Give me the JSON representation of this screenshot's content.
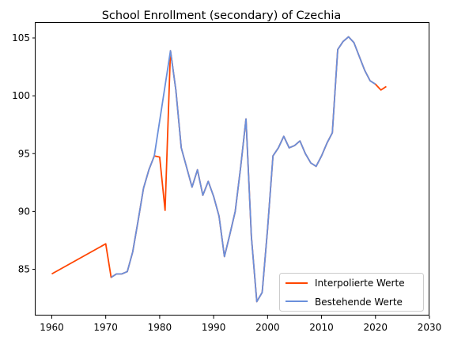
{
  "chart_data": {
    "type": "line",
    "title": "School Enrollment (secondary) of Czechia",
    "xlabel": "",
    "ylabel": "",
    "xlim": [
      1957,
      2030
    ],
    "ylim": [
      81,
      106.3
    ],
    "x_ticks": [
      1960,
      1970,
      1980,
      1990,
      2000,
      2010,
      2020,
      2030
    ],
    "y_ticks": [
      85,
      90,
      95,
      100,
      105
    ],
    "grid": false,
    "legend_position": "lower-right",
    "series": [
      {
        "name": "Interpolierte Werte",
        "color": "#ff4500",
        "x": [
          1960,
          1970,
          1971,
          1972,
          1973,
          1974,
          1975,
          1976,
          1977,
          1978,
          1979,
          1980,
          1981,
          1982,
          1983,
          1984,
          1985,
          1986,
          1987,
          1988,
          1989,
          1990,
          1991,
          1992,
          1993,
          1994,
          1995,
          1996,
          1997,
          1998,
          1999,
          2000,
          2001,
          2002,
          2003,
          2004,
          2005,
          2006,
          2007,
          2008,
          2009,
          2010,
          2011,
          2012,
          2013,
          2014,
          2015,
          2016,
          2017,
          2018,
          2019,
          2020,
          2021,
          2022
        ],
        "y": [
          84.6,
          87.2,
          84.3,
          84.6,
          84.6,
          84.8,
          86.5,
          89.2,
          92.0,
          93.6,
          94.8,
          94.7,
          90.1,
          103.9,
          100.5,
          95.5,
          93.8,
          92.1,
          93.6,
          91.4,
          92.6,
          91.3,
          89.6,
          86.1,
          88.0,
          90.0,
          93.8,
          98.0,
          87.8,
          82.2,
          83.0,
          88.5,
          94.8,
          95.5,
          96.5,
          95.5,
          95.7,
          96.1,
          95.0,
          94.2,
          93.9,
          94.8,
          95.9,
          96.8,
          104.0,
          104.7,
          105.1,
          104.6,
          103.4,
          102.2,
          101.3,
          101.0,
          100.5,
          100.8
        ]
      },
      {
        "name": "Bestehende Werte",
        "color": "#6a8fdb",
        "x": [
          1971,
          1972,
          1973,
          1974,
          1975,
          1976,
          1977,
          1978,
          1979,
          1982,
          1983,
          1984,
          1985,
          1986,
          1987,
          1988,
          1989,
          1990,
          1991,
          1992,
          1993,
          1994,
          1995,
          1996,
          1997,
          1998,
          1999,
          2000,
          2001,
          2002,
          2003,
          2004,
          2005,
          2006,
          2007,
          2008,
          2009,
          2010,
          2011,
          2012,
          2013,
          2014,
          2015,
          2016,
          2017,
          2018,
          2019,
          2020
        ],
        "y": [
          84.3,
          84.6,
          84.6,
          84.8,
          86.5,
          89.2,
          92.0,
          93.6,
          94.8,
          103.9,
          100.5,
          95.5,
          93.8,
          92.1,
          93.6,
          91.4,
          92.6,
          91.3,
          89.6,
          86.1,
          88.0,
          90.0,
          93.8,
          98.0,
          87.8,
          82.2,
          83.0,
          88.5,
          94.8,
          95.5,
          96.5,
          95.5,
          95.7,
          96.1,
          95.0,
          94.2,
          93.9,
          94.8,
          95.9,
          96.8,
          104.0,
          104.7,
          105.1,
          104.6,
          103.4,
          102.2,
          101.3,
          101.0
        ]
      }
    ]
  }
}
